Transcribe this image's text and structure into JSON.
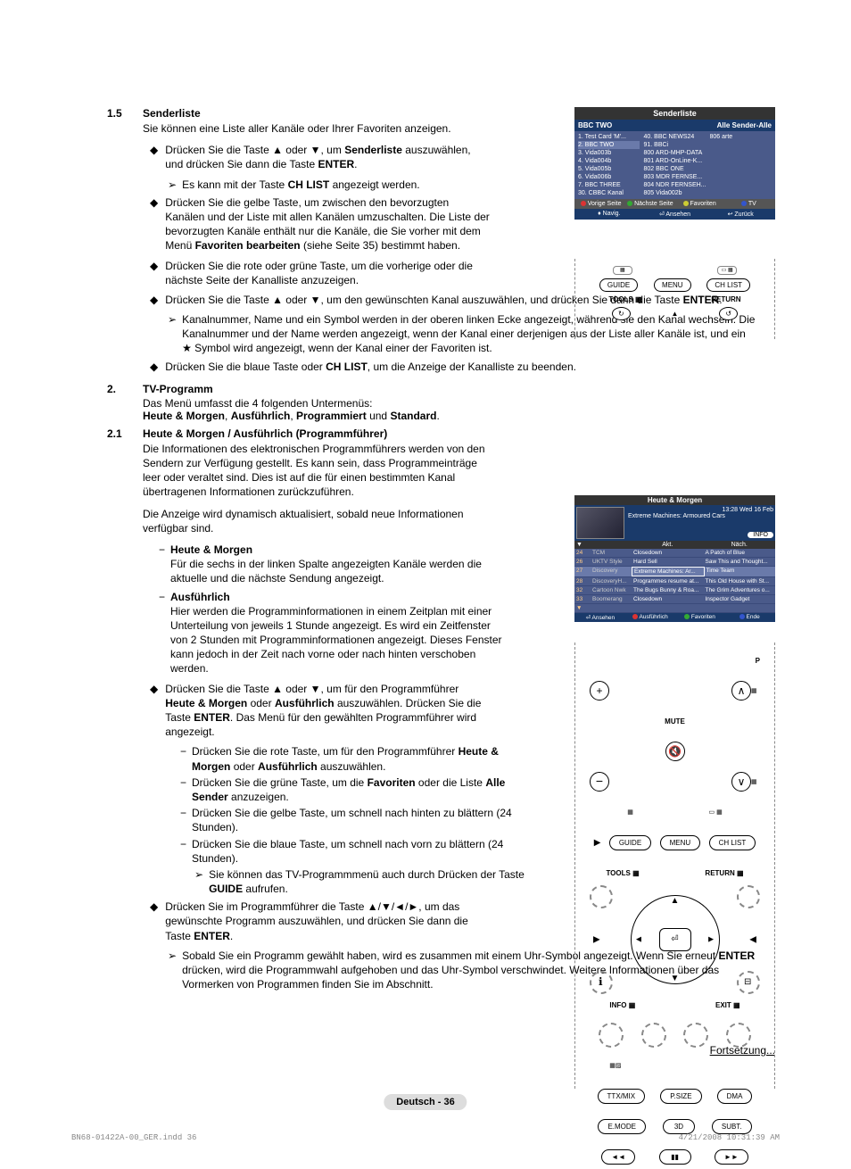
{
  "section15": {
    "num": "1.5",
    "title": "Senderliste",
    "intro": "Sie können eine Liste aller Kanäle oder Ihrer Favoriten anzeigen.",
    "bullets": [
      "Drücken Sie die Taste ▲ oder ▼, um <b>Senderliste</b> auszuwählen, und drücken Sie dann die Taste <b>ENTER</b>.",
      "Drücken Sie die gelbe Taste, um zwischen den bevorzugten Kanälen und der Liste mit allen Kanälen umzuschalten. Die Liste der bevorzugten Kanäle enthält nur die Kanäle, die Sie vorher mit dem Menü <b>Favoriten bearbeiten</b> (siehe Seite 35) bestimmt haben.",
      "Drücken Sie die rote oder grüne Taste, um die vorherige oder die nächste Seite der Kanalliste anzuzeigen.",
      "Drücken Sie die Taste ▲ oder ▼, um den gewünschten Kanal auszuwählen, und drücken Sie dann die Taste <b>ENTER</b>.",
      "Drücken Sie die blaue Taste oder <b>CH LIST</b>, um die Anzeige der Kanalliste zu beenden."
    ],
    "sub1": "Es kann mit der Taste <b>CH LIST</b> angezeigt werden.",
    "sub4": "Kanalnummer, Name und ein Symbol werden in der oberen linken Ecke angezeigt, während sie den Kanal wechseln. Die Kanalnummer und der Name werden angezeigt, wenn der Kanal einer derjenigen aus der Liste aller Kanäle ist, und ein ★ Symbol wird angezeigt, wenn der Kanal einer der Favoriten ist."
  },
  "section2": {
    "num": "2.",
    "title": "TV-Programm",
    "intro_a": "Das Menü umfasst die 4 folgenden Untermenüs:",
    "intro_b": "<b>Heute & Morgen</b>, <b>Ausführlich</b>, <b>Programmiert</b> und <b>Standard</b>."
  },
  "section21": {
    "num": "2.1",
    "title": "Heute & Morgen / Ausführlich (Programmführer)",
    "p1": "Die Informationen des elektronischen Programmführers werden von den Sendern zur Verfügung gestellt. Es kann sein, dass Programmeinträge leer oder veraltet sind. Dies ist auf die für einen bestimmten Kanal übertragenen Informationen zurückzuführen.",
    "p2": "Die Anzeige wird dynamisch aktualisiert, sobald neue Informationen verfügbar sind.",
    "hm_title": "Heute & Morgen",
    "hm_text": "Für die sechs in der linken Spalte angezeigten Kanäle werden die aktuelle und die nächste Sendung angezeigt.",
    "aus_title": "Ausführlich",
    "aus_text": "Hier werden die Programminformationen in einem Zeitplan mit einer Unterteilung von jeweils 1 Stunde angezeigt. Es wird ein Zeitfenster von 2 Stunden mit Programminformationen angezeigt. Dieses Fenster kann jedoch in der Zeit nach vorne oder nach hinten verschoben werden.",
    "b1": "Drücken Sie die Taste ▲ oder ▼, um für den Programmführer <b>Heute & Morgen</b> oder <b>Ausführlich</b> auszuwählen. Drücken Sie die Taste <b>ENTER</b>. Das Menü für den gewählten Programmführer wird angezeigt.",
    "b1_dashes": [
      "Drücken Sie die rote Taste, um für den Programmführer <b>Heute & Morgen</b> oder <b>Ausführlich</b> auszuwählen.",
      "Drücken Sie die grüne Taste, um die <b>Favoriten</b> oder die Liste <b>Alle Sender</b> anzuzeigen.",
      "Drücken Sie die gelbe Taste, um schnell nach hinten zu blättern (24 Stunden).",
      "Drücken Sie die blaue Taste, um schnell nach vorn zu blättern (24 Stunden)."
    ],
    "b1_sub": "Sie können das TV-Programmmenü auch durch Drücken der Taste <b>GUIDE</b> aufrufen.",
    "b2": "Drücken Sie im Programmführer die Taste ▲/▼/◄/►, um das gewünschte Programm auszuwählen, und drücken Sie dann die Taste <b>ENTER</b>.",
    "b2_sub": "Sobald Sie ein Programm gewählt haben, wird es zusammen mit einem Uhr-Symbol angezeigt. Wenn Sie erneut <b>ENTER</b> drücken, wird die Programmwahl aufgehoben und das Uhr-Symbol verschwindet. Weitere Informationen über das Vormerken von Programmen finden Sie im Abschnitt."
  },
  "continuation": "Fortsetzung...",
  "page_label": "Deutsch - 36",
  "print_footer_left": "BN68-01422A-00_GER.indd   36",
  "print_footer_right": "4/21/2008   10:31:39 AM",
  "senderliste": {
    "title": "Senderliste",
    "channel": "BBC TWO",
    "right": "Alle Sender-Alle",
    "col1": [
      "1. Test Card 'M'...",
      "2. BBC TWO",
      "3. Vida003b",
      "4. Vida004b",
      "5. Vida005b",
      "6. Vida006b",
      "7. BBC THREE",
      "30. CBBC Kanal"
    ],
    "col2": [
      "40. BBC NEWS24",
      "91. BBCi",
      "800 ARD-MHP-DATA",
      "801 ARD-OnLine-K...",
      "802 BBC ONE",
      "803 MDR FERNSE...",
      "804 NDR FERNSEH...",
      "805 Vida002b"
    ],
    "col3": [
      "806 arte",
      "",
      "",
      "",
      "",
      "",
      "",
      ""
    ],
    "foot1": [
      "Vorige Seite",
      "Nächste Seite",
      "Favoriten",
      "TV"
    ],
    "foot1_colors": [
      "#d33",
      "#3a3",
      "#cc3",
      "#35c"
    ],
    "foot2": [
      "♦ Navig.",
      "⏎ Ansehen",
      "↩ Zurück"
    ]
  },
  "remote_top": {
    "btns_row1": [
      "▦",
      "▭ ▦"
    ],
    "btns_row2": [
      "GUIDE",
      "MENU",
      "CH LIST"
    ],
    "row3_left": "TOOLS ▦",
    "row3_right": "RETURN",
    "row4_left": "↻",
    "row4_mid": "▲",
    "row4_right": "↺"
  },
  "epg": {
    "title": "Heute & Morgen",
    "time": "13:28 Wed 16 Feb",
    "prog": "Extreme Machines: Armoured Cars",
    "infobtn": "INFO",
    "head": [
      "",
      "",
      "Akt.",
      "Näch."
    ],
    "rows": [
      {
        "n": "24",
        "ch": "TCM",
        "a": "Closedown",
        "b": "A Patch of Blue"
      },
      {
        "n": "26",
        "ch": "UKTV Style",
        "a": "Hard Sell",
        "b": "Saw This and Thought..."
      },
      {
        "n": "27",
        "ch": "Discovery",
        "a": "Extreme Machines: Ar...",
        "b": "Time Team",
        "sel": true
      },
      {
        "n": "28",
        "ch": "DiscoveryH...",
        "a": "Programmes resume at...",
        "b": "This Old House with St..."
      },
      {
        "n": "32",
        "ch": "Cartoon Nwk",
        "a": "The Bugs Bunny & Roa...",
        "b": "The Grim Adventures o..."
      },
      {
        "n": "33",
        "ch": "Boomerang",
        "a": "Closedown",
        "b": "Inspector Gadget"
      }
    ],
    "footer": [
      "⏎ Ansehen",
      "Ausführlich",
      "Favoriten",
      "Ende"
    ],
    "footer_colors": [
      "",
      "#d33",
      "#3a3",
      "#35c"
    ]
  },
  "remote_full": {
    "p_label": "P",
    "mute": "MUTE",
    "row4": [
      "▦",
      "▭ ▦"
    ],
    "row5": [
      "GUIDE",
      "MENU",
      "CH LIST"
    ],
    "tools": "TOOLS ▦",
    "return": "RETURN ▦",
    "info": "INFO ▦",
    "exit": "EXIT ▦",
    "center": "⏎",
    "row_color": [
      "",
      "",
      "",
      ""
    ],
    "row8": [
      "TTX/MIX",
      "P.SIZE",
      "DMA"
    ],
    "row9": [
      "E.MODE",
      "3D",
      "SUBT."
    ],
    "row10": [
      "◄◄",
      "▮▮",
      "►►"
    ]
  }
}
